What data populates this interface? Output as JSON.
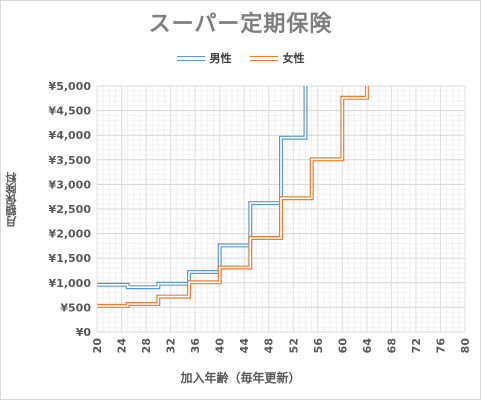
{
  "chart_data": {
    "type": "line",
    "title": "スーパー定期保険",
    "xlabel": "加入年齢（毎年更新）",
    "ylabel": "月額保険料",
    "xlim": [
      20,
      80
    ],
    "ylim": [
      0,
      5000
    ],
    "x_ticks": [
      20,
      24,
      28,
      32,
      36,
      40,
      44,
      48,
      52,
      56,
      60,
      64,
      68,
      72,
      76,
      80
    ],
    "y_ticks": [
      0,
      500,
      1000,
      1500,
      2000,
      2500,
      3000,
      3500,
      4000,
      4500,
      5000
    ],
    "y_tick_labels": [
      "¥0",
      "¥500",
      "¥1,000",
      "¥1,500",
      "¥2,000",
      "¥2,500",
      "¥3,000",
      "¥3,500",
      "¥4,000",
      "¥4,500",
      "¥5,000"
    ],
    "grid": true,
    "legend_position": "top",
    "series": [
      {
        "name": "男性",
        "color": "#5b9bd5",
        "points": [
          [
            20,
            960
          ],
          [
            25,
            960
          ],
          [
            25,
            910
          ],
          [
            30,
            910
          ],
          [
            30,
            980
          ],
          [
            35,
            980
          ],
          [
            35,
            1220
          ],
          [
            40,
            1220
          ],
          [
            40,
            1760
          ],
          [
            45,
            1760
          ],
          [
            45,
            2620
          ],
          [
            50,
            2620
          ],
          [
            50,
            3950
          ],
          [
            54,
            3950
          ],
          [
            54,
            5000
          ]
        ]
      },
      {
        "name": "女性",
        "color": "#ed7d31",
        "points": [
          [
            20,
            530
          ],
          [
            25,
            530
          ],
          [
            25,
            570
          ],
          [
            30,
            570
          ],
          [
            30,
            720
          ],
          [
            35,
            720
          ],
          [
            35,
            1010
          ],
          [
            40,
            1010
          ],
          [
            40,
            1310
          ],
          [
            45,
            1310
          ],
          [
            45,
            1910
          ],
          [
            50,
            1910
          ],
          [
            50,
            2720
          ],
          [
            55,
            2720
          ],
          [
            55,
            3510
          ],
          [
            60,
            3510
          ],
          [
            60,
            4760
          ],
          [
            64,
            4760
          ],
          [
            64,
            5000
          ]
        ]
      }
    ]
  }
}
